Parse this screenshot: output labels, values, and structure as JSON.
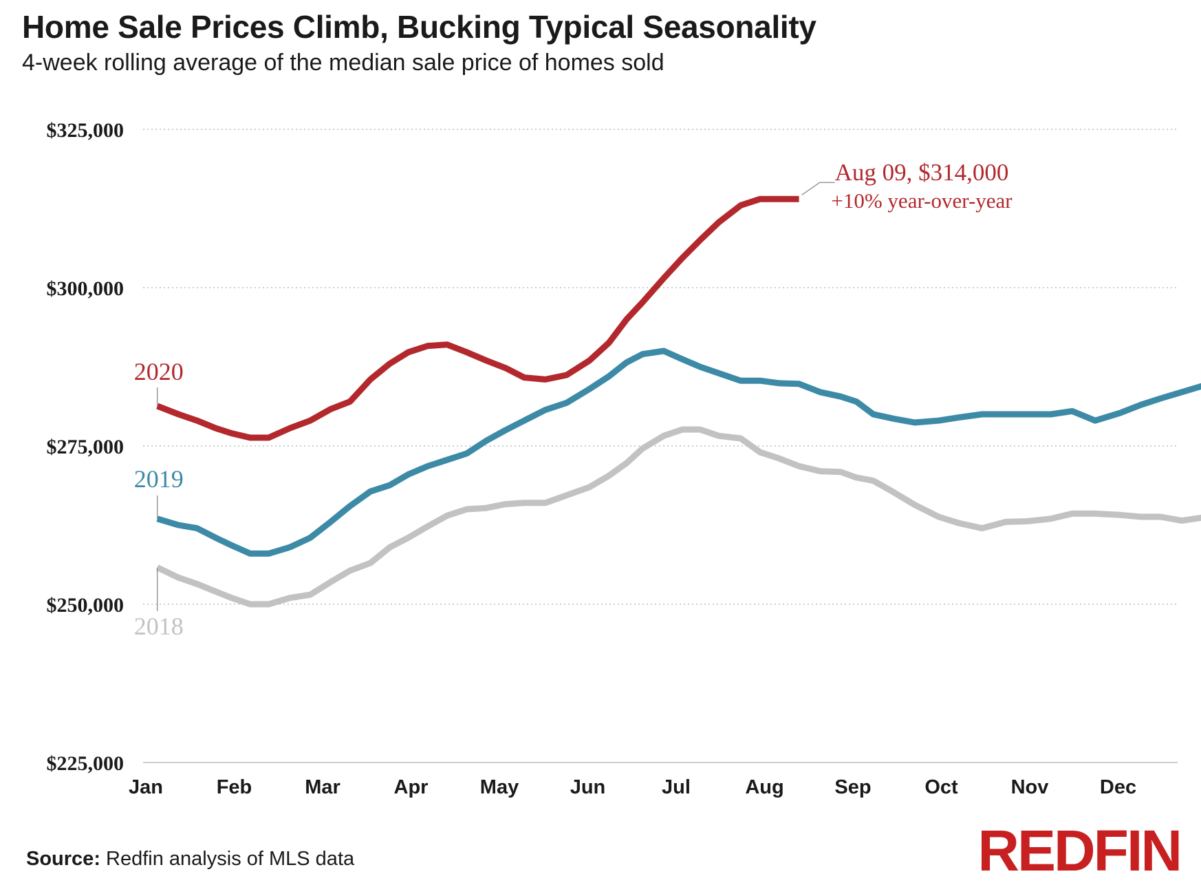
{
  "title": "Home Sale Prices Climb, Bucking Typical Seasonality",
  "subtitle": "4-week rolling average of the median sale price of homes sold",
  "source_label": "Source:",
  "source_text": " Redfin analysis of MLS data",
  "logo": "REDFIN",
  "chart_data": {
    "type": "line",
    "title": "Home Sale Prices Climb, Bucking Typical Seasonality",
    "subtitle": "4-week rolling average of the median sale price of homes sold",
    "x_labels": [
      "Jan",
      "Feb",
      "Mar",
      "Apr",
      "May",
      "Jun",
      "Jul",
      "Aug",
      "Sep",
      "Oct",
      "Nov",
      "Dec"
    ],
    "ylim": [
      225000,
      325000
    ],
    "y_ticks": [
      225000,
      250000,
      275000,
      300000,
      325000
    ],
    "y_tick_labels": [
      "$225,000",
      "$250,000",
      "$275,000",
      "$300,000",
      "$325,000"
    ],
    "grid": "horizontal dotted",
    "series": [
      {
        "name": "2018",
        "color": "#c2c2c2",
        "x": [
          1.13,
          1.37,
          1.58,
          1.79,
          1.97,
          2.18,
          2.39,
          2.63,
          2.86,
          3.09,
          3.31,
          3.54,
          3.76,
          3.97,
          4.19,
          4.41,
          4.63,
          4.85,
          5.07,
          5.28,
          5.52,
          5.76,
          6.02,
          6.24,
          6.44,
          6.62,
          6.86,
          7.07,
          7.27,
          7.48,
          7.73,
          7.95,
          8.17,
          8.39,
          8.63,
          8.86,
          9.04,
          9.23,
          9.46,
          9.7,
          9.97,
          10.2,
          10.46,
          10.73,
          10.97,
          11.24,
          11.48,
          11.74,
          12.02,
          12.26,
          12.48,
          12.72,
          12.96
        ],
        "values": [
          255800,
          254200,
          253200,
          252000,
          251000,
          250000,
          250000,
          251000,
          251500,
          253500,
          255300,
          256500,
          259000,
          260500,
          262300,
          264000,
          265000,
          265200,
          265800,
          266000,
          266000,
          267200,
          268500,
          270300,
          272300,
          274600,
          276600,
          277600,
          277600,
          276600,
          276200,
          274000,
          273000,
          271800,
          271000,
          270900,
          270000,
          269500,
          267700,
          265700,
          263800,
          262800,
          262000,
          263000,
          263100,
          263500,
          264300,
          264300,
          264100,
          263800,
          263800,
          263200,
          263700
        ]
      },
      {
        "name": "2019",
        "color": "#3d8aa7",
        "x": [
          1.13,
          1.37,
          1.58,
          1.79,
          1.97,
          2.18,
          2.39,
          2.63,
          2.86,
          3.09,
          3.31,
          3.54,
          3.76,
          3.97,
          4.19,
          4.41,
          4.63,
          4.85,
          5.07,
          5.28,
          5.52,
          5.76,
          6.02,
          6.24,
          6.44,
          6.62,
          6.86,
          7.07,
          7.27,
          7.48,
          7.73,
          7.95,
          8.17,
          8.39,
          8.63,
          8.86,
          9.04,
          9.23,
          9.46,
          9.7,
          9.97,
          10.2,
          10.46,
          10.73,
          10.97,
          11.24,
          11.48,
          11.74,
          12.02,
          12.26,
          12.48,
          12.72,
          12.96
        ],
        "values": [
          263500,
          262500,
          262000,
          260500,
          259300,
          258000,
          258000,
          259000,
          260500,
          263000,
          265500,
          267800,
          268800,
          270500,
          271800,
          272800,
          273800,
          275800,
          277500,
          279000,
          280700,
          281800,
          284000,
          286000,
          288200,
          289500,
          290000,
          288700,
          287500,
          286500,
          285300,
          285300,
          284900,
          284800,
          283500,
          282800,
          282000,
          280000,
          279300,
          278700,
          279000,
          279500,
          280000,
          280000,
          280000,
          280000,
          280500,
          279000,
          280200,
          281500,
          282500,
          283500,
          284500
        ]
      },
      {
        "name": "2020",
        "color": "#b3282d",
        "x": [
          1.13,
          1.37,
          1.58,
          1.79,
          1.97,
          2.18,
          2.39,
          2.63,
          2.86,
          3.09,
          3.31,
          3.54,
          3.76,
          3.97,
          4.19,
          4.41,
          4.63,
          4.85,
          5.07,
          5.28,
          5.52,
          5.76,
          6.02,
          6.24,
          6.44,
          6.62,
          6.86,
          7.07,
          7.27,
          7.48,
          7.73,
          7.95,
          8.17,
          8.39
        ],
        "values": [
          281300,
          280000,
          279000,
          277800,
          277000,
          276300,
          276300,
          277800,
          279000,
          280800,
          282000,
          285500,
          288000,
          289800,
          290800,
          291000,
          289800,
          288500,
          287300,
          285800,
          285500,
          286200,
          288500,
          291300,
          295000,
          297700,
          301500,
          304700,
          307500,
          310300,
          313000,
          314000,
          314000,
          314000
        ]
      }
    ],
    "series_labels": [
      "2020",
      "2019",
      "2018"
    ],
    "annotation": {
      "line1": "Aug 09, $314,000",
      "line2": "+10% year-over-year"
    }
  }
}
